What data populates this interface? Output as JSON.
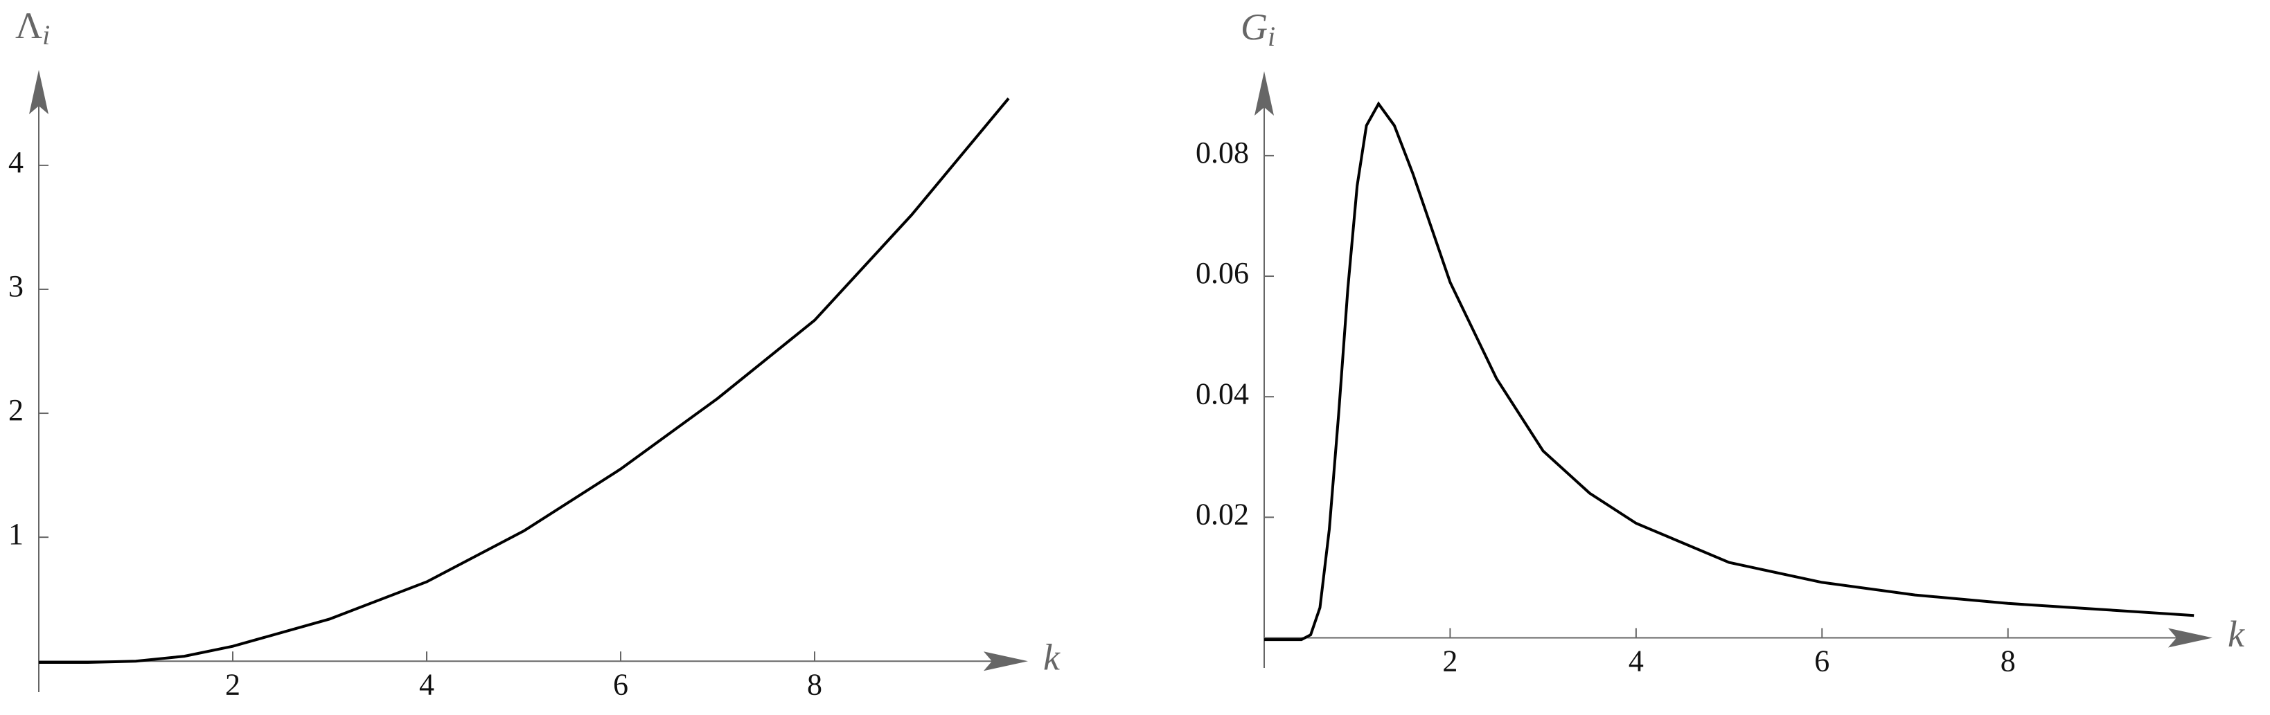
{
  "chart_data": [
    {
      "type": "line",
      "xlabel": "k",
      "ylabel": {
        "base": "Λ",
        "sub": "i"
      },
      "x": [
        0,
        0.5,
        1,
        1.5,
        2,
        3,
        4,
        5,
        6,
        7,
        8,
        9,
        10
      ],
      "values": [
        -0.01,
        -0.01,
        0.0,
        0.04,
        0.12,
        0.34,
        0.64,
        1.05,
        1.55,
        2.12,
        2.75,
        3.6,
        4.54
      ],
      "color": "#000000",
      "xlim": [
        0,
        10.2
      ],
      "ylim": [
        -0.25,
        4.77
      ],
      "xticks": [
        2,
        4,
        6,
        8
      ],
      "yticks": [
        1,
        2,
        3,
        4
      ]
    },
    {
      "type": "line",
      "xlabel": "k",
      "ylabel": {
        "base": "G",
        "sub": "i"
      },
      "x": [
        0,
        0.4,
        0.5,
        0.6,
        0.7,
        0.8,
        0.9,
        1.0,
        1.1,
        1.23,
        1.4,
        1.6,
        2.0,
        2.5,
        3,
        3.5,
        4,
        5,
        6,
        7,
        8,
        9,
        10
      ],
      "values": [
        -0.0003,
        -0.0003,
        0.0005,
        0.005,
        0.018,
        0.037,
        0.058,
        0.075,
        0.085,
        0.0886,
        0.085,
        0.077,
        0.059,
        0.043,
        0.031,
        0.024,
        0.019,
        0.0125,
        0.0092,
        0.0071,
        0.0057,
        0.0047,
        0.0037
      ],
      "color": "#000000",
      "xlim": [
        0,
        10.2
      ],
      "ylim": [
        -0.005,
        0.094
      ],
      "xticks": [
        2,
        4,
        6,
        8
      ],
      "yticks": [
        0.02,
        0.04,
        0.06,
        0.08
      ]
    }
  ]
}
